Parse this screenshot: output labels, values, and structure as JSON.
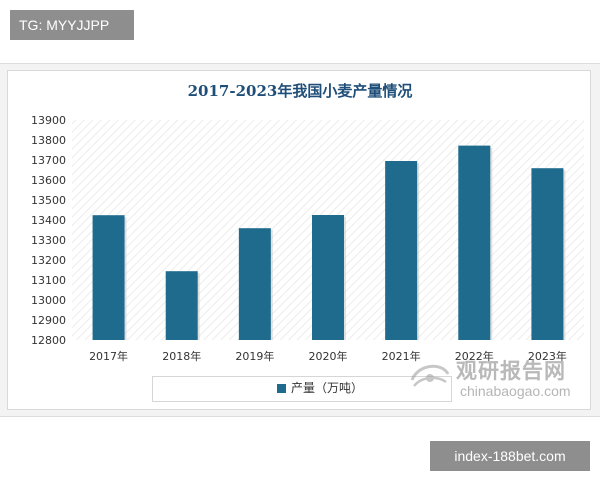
{
  "overlay": {
    "tg_label": "TG: MYYJJPP",
    "link_label": "index-188bet.com"
  },
  "watermark": {
    "brand_cn": "观研报告网",
    "brand_en": "chinabaogao.com"
  },
  "colors": {
    "bar": "#1f6b8e",
    "title": "#1f4e79"
  },
  "chart_data": {
    "type": "bar",
    "title": "2017-2023年我国小麦产量情况",
    "categories": [
      "2017年",
      "2018年",
      "2019年",
      "2020年",
      "2021年",
      "2022年",
      "2023年"
    ],
    "series": [
      {
        "name": "产量（万吨）",
        "values": [
          13424,
          13144,
          13359,
          13425,
          13695,
          13772,
          13659
        ]
      }
    ],
    "ylim": [
      12800,
      13900
    ],
    "yticks": [
      12800,
      12900,
      13000,
      13100,
      13200,
      13300,
      13400,
      13500,
      13600,
      13700,
      13800,
      13900
    ],
    "grid": false,
    "legend": "bottom"
  }
}
